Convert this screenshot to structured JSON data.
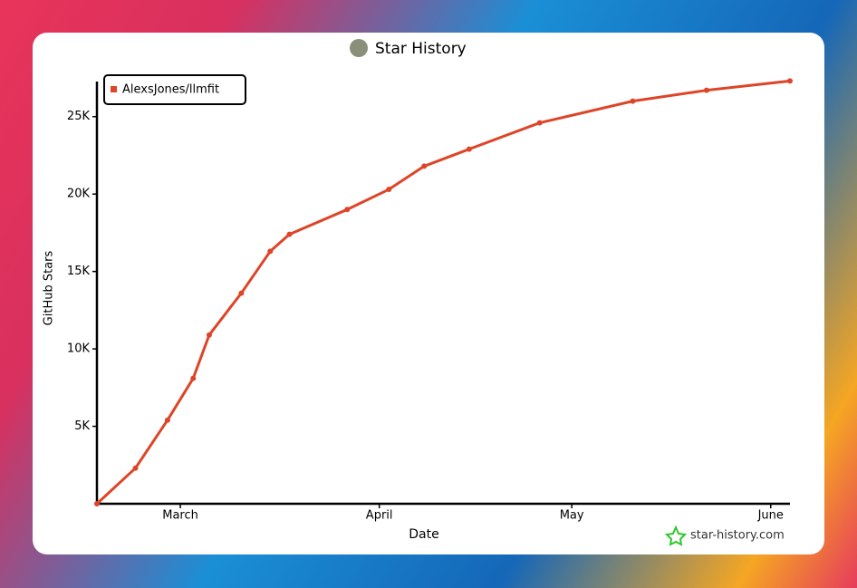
{
  "chart_data": {
    "type": "line",
    "title": "Star History",
    "x_label": "Date",
    "y_label": "GitHub Stars",
    "watermark": "star-history.com",
    "legend": "upper left",
    "x": [
      -13,
      -7,
      -2,
      2,
      4.5,
      9.5,
      14,
      17,
      26,
      32.5,
      38,
      45,
      56,
      70.5,
      82,
      95
    ],
    "series": [
      {
        "name": "AlexsJones/llmfit",
        "color": "#dd4528",
        "values": [
          0,
          2300,
          5400,
          8100,
          10900,
          13600,
          16300,
          17400,
          19000,
          20300,
          21800,
          22900,
          24600,
          26000,
          26700,
          27300
        ]
      }
    ],
    "xlim": [
      -13,
      95
    ],
    "xticks": [
      {
        "value": 0,
        "label": "March"
      },
      {
        "value": 31,
        "label": "April"
      },
      {
        "value": 61,
        "label": "May"
      },
      {
        "value": 92,
        "label": "June"
      }
    ],
    "ylim": [
      0,
      27500
    ],
    "yticks": [
      {
        "value": 5000,
        "label": "5K"
      },
      {
        "value": 10000,
        "label": "10K"
      },
      {
        "value": 15000,
        "label": "15K"
      },
      {
        "value": 20000,
        "label": "20K"
      },
      {
        "value": 25000,
        "label": "25K"
      }
    ]
  }
}
